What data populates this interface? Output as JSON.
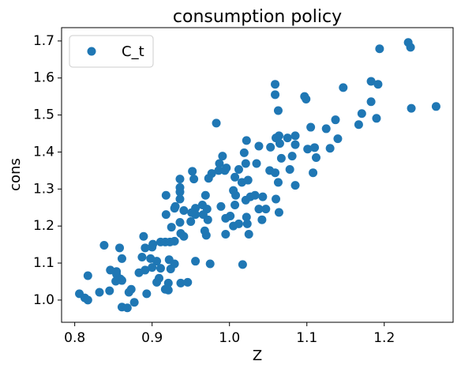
{
  "chart_data": {
    "type": "scatter",
    "title": "consumption policy",
    "xlabel": "Z",
    "ylabel": "cons",
    "xlim": [
      0.783,
      1.289
    ],
    "ylim": [
      0.94,
      1.736
    ],
    "xticks": [
      0.8,
      0.9,
      {
        "value": 1,
        "label": "1.0"
      },
      1.1,
      1.2
    ],
    "yticks": [
      {
        "value": 1,
        "label": "1.0"
      },
      1.1,
      1.2,
      1.3,
      1.4,
      1.5,
      1.6,
      1.7
    ],
    "legend": "upper left",
    "grid": false,
    "series": [
      {
        "name": "C_t",
        "color": "#1f77b4",
        "x": [
          1.231,
          1.234,
          1.194,
          1.267,
          1.235,
          1.183,
          1.192,
          1.183,
          1.19,
          1.171,
          1.167,
          1.147,
          1.137,
          1.14,
          1.13,
          1.125,
          1.097,
          1.099,
          1.105,
          1.11,
          1.101,
          1.112,
          1.108,
          1.085,
          1.075,
          1.085,
          1.081,
          1.064,
          1.059,
          1.059,
          1.063,
          1.06,
          1.053,
          1.065,
          1.078,
          1.052,
          1.059,
          1.063,
          1.067,
          1.038,
          1.035,
          1.022,
          1.019,
          1.021,
          1.012,
          1.007,
          1.016,
          1.024,
          1.027,
          1.033,
          1.008,
          1.005,
          1.021,
          1.007,
          1.001,
          1.012,
          1.022,
          1.038,
          1.043,
          1.042,
          1.06,
          1.064,
          1.047,
          1.025,
          1.017,
          1.023,
          1.005,
          0.995,
          0.995,
          0.989,
          0.994,
          0.991,
          0.983,
          0.987,
          0.977,
          0.986,
          0.996,
          0.973,
          0.969,
          0.965,
          0.971,
          0.952,
          0.954,
          0.936,
          0.936,
          0.936,
          0.918,
          0.936,
          0.93,
          0.929,
          0.941,
          0.956,
          0.956,
          0.951,
          0.966,
          0.972,
          0.968,
          0.97,
          0.95,
          0.936,
          0.918,
          0.925,
          0.937,
          0.941,
          0.929,
          0.911,
          0.917,
          0.923,
          0.9,
          0.901,
          0.889,
          0.891,
          0.887,
          0.898,
          0.906,
          0.922,
          0.929,
          0.911,
          0.9,
          0.891,
          0.883,
          0.909,
          0.906,
          0.921,
          0.937,
          0.946,
          0.956,
          0.975,
          0.924,
          0.858,
          0.861,
          0.854,
          0.854,
          0.859,
          0.861,
          0.853,
          0.873,
          0.87,
          0.861,
          0.868,
          0.877,
          0.893,
          0.921,
          0.917,
          0.838,
          0.846,
          0.845,
          0.832,
          0.817,
          0.806,
          0.813,
          0.817,
          1.085
        ],
        "values": [
          1.696,
          1.683,
          1.679,
          1.523,
          1.518,
          1.591,
          1.583,
          1.536,
          1.491,
          1.504,
          1.474,
          1.574,
          1.487,
          1.436,
          1.41,
          1.463,
          1.55,
          1.543,
          1.467,
          1.412,
          1.408,
          1.385,
          1.344,
          1.31,
          1.438,
          1.42,
          1.389,
          1.444,
          1.583,
          1.555,
          1.512,
          1.438,
          1.413,
          1.423,
          1.353,
          1.35,
          1.344,
          1.318,
          1.383,
          1.416,
          1.369,
          1.431,
          1.398,
          1.369,
          1.353,
          1.332,
          1.318,
          1.324,
          1.279,
          1.283,
          1.283,
          1.296,
          1.27,
          1.257,
          1.227,
          1.206,
          1.224,
          1.246,
          1.279,
          1.217,
          1.273,
          1.237,
          1.246,
          1.178,
          1.096,
          1.206,
          1.2,
          1.178,
          1.221,
          1.253,
          1.35,
          1.389,
          1.478,
          1.369,
          1.342,
          1.35,
          1.357,
          1.329,
          1.283,
          1.257,
          1.246,
          1.348,
          1.327,
          1.327,
          1.304,
          1.292,
          1.283,
          1.273,
          1.253,
          1.248,
          1.242,
          1.248,
          1.231,
          1.236,
          1.231,
          1.217,
          1.187,
          1.175,
          1.212,
          1.21,
          1.231,
          1.197,
          1.18,
          1.172,
          1.159,
          1.157,
          1.157,
          1.157,
          1.143,
          1.151,
          1.172,
          1.141,
          1.116,
          1.112,
          1.105,
          1.109,
          1.098,
          1.086,
          1.088,
          1.081,
          1.074,
          1.059,
          1.048,
          1.046,
          1.046,
          1.048,
          1.105,
          1.098,
          1.084,
          1.141,
          1.112,
          1.077,
          1.07,
          1.057,
          1.053,
          1.051,
          1.029,
          1.021,
          0.981,
          0.979,
          0.994,
          1.017,
          1.027,
          1.029,
          1.148,
          1.081,
          1.025,
          1.021,
          1.066,
          1.017,
          1.006,
          1,
          1.444
        ]
      }
    ]
  }
}
